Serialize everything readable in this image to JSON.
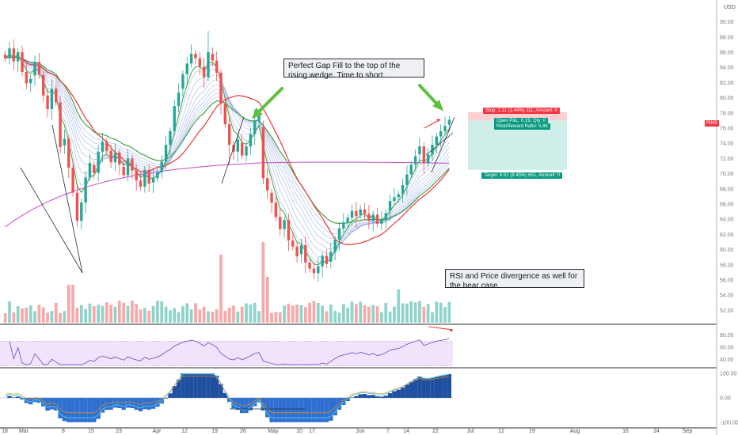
{
  "currency": "USD",
  "symbol_badge": "PINS",
  "chart_data": {
    "type": "candlestick",
    "price_axis": {
      "ticks": [
        "90.00",
        "88.00",
        "86.00",
        "84.00",
        "82.00",
        "80.00",
        "78.00",
        "76.00",
        "74.00",
        "72.00",
        "70.00",
        "68.00",
        "66.00",
        "64.00",
        "62.00",
        "60.00",
        "58.00",
        "56.00",
        "54.00",
        "52.00"
      ],
      "range": [
        51,
        91
      ]
    },
    "rsi_axis": {
      "ticks": [
        "80.00",
        "60.00",
        "40.00"
      ],
      "range": [
        28,
        90
      ],
      "band": [
        30,
        70
      ]
    },
    "osc_axis": {
      "ticks": [
        "100.00",
        "0.00",
        "-100.00"
      ],
      "range": [
        -120,
        120
      ]
    },
    "x_ticks": [
      "18",
      "Mar",
      "8",
      "15",
      "23",
      "Apr",
      "12",
      "19",
      "26",
      "May",
      "10",
      "17",
      "Jun",
      "7",
      "14",
      "22",
      "Jul",
      "12",
      "19",
      "Aug",
      "16",
      "24",
      "Sep"
    ],
    "colors": {
      "up": "#26a69a",
      "down": "#ef5350",
      "ma_green": "#43a047",
      "ma_red": "#e53935",
      "ma_magenta": "#c64bc6",
      "ribbon": "#90a4e0",
      "rsi": "#7e57c2",
      "arrow": "#5fbf3f"
    },
    "closes": [
      85.2,
      86.5,
      84.8,
      86.0,
      83.4,
      81.9,
      82.5,
      84.7,
      83.0,
      80.3,
      78.5,
      81.2,
      79.4,
      73.5,
      74.6,
      70.8,
      67.5,
      63.8,
      66.2,
      69.5,
      71.4,
      70.1,
      72.9,
      74.2,
      73.0,
      71.5,
      72.8,
      71.2,
      69.8,
      72.0,
      70.4,
      69.1,
      68.3,
      70.5,
      68.7,
      69.4,
      70.2,
      71.6,
      73.8,
      75.6,
      78.9,
      80.7,
      83.1,
      84.5,
      85.8,
      85.2,
      84.1,
      82.7,
      86.0,
      84.9,
      83.3,
      79.2,
      76.5,
      73.8,
      72.9,
      74.5,
      72.4,
      73.6,
      75.2,
      76.9,
      77.8,
      69.4,
      67.8,
      66.2,
      64.3,
      62.7,
      63.9,
      61.2,
      60.4,
      59.1,
      60.6,
      58.3,
      57.5,
      56.9,
      57.8,
      59.2,
      58.1,
      59.7,
      61.3,
      62.8,
      63.6,
      64.2,
      65.1,
      64.4,
      65.3,
      64.7,
      63.8,
      64.6,
      63.4,
      63.9,
      64.8,
      66.4,
      66.9,
      67.3,
      68.5,
      69.9,
      71.2,
      72.3,
      73.6,
      71.4,
      72.5,
      73.8,
      74.9,
      75.6,
      76.3,
      77.1
    ]
  },
  "indicators": {
    "rsi_label": "",
    "oscillator_label": ""
  },
  "position": {
    "stop_label": "Stop: 1.11 (1.44%) 111, Amount: 0",
    "open_pl_label": "Open P&L: 0.19, Qty: 0",
    "rr_label": "Risk/Reward Ratio: 5.86",
    "target_label": "Target: 6.51 (8.45%) 651, Amount: 0",
    "entry": 77.0,
    "stop": 78.11,
    "target": 70.49
  },
  "annotations": {
    "gap_fill": "Perfect Gap Fill to the top of the rising wedge.  Time to short.",
    "rsi_divergence": "RSI and Price divergence as well for the bear case."
  }
}
